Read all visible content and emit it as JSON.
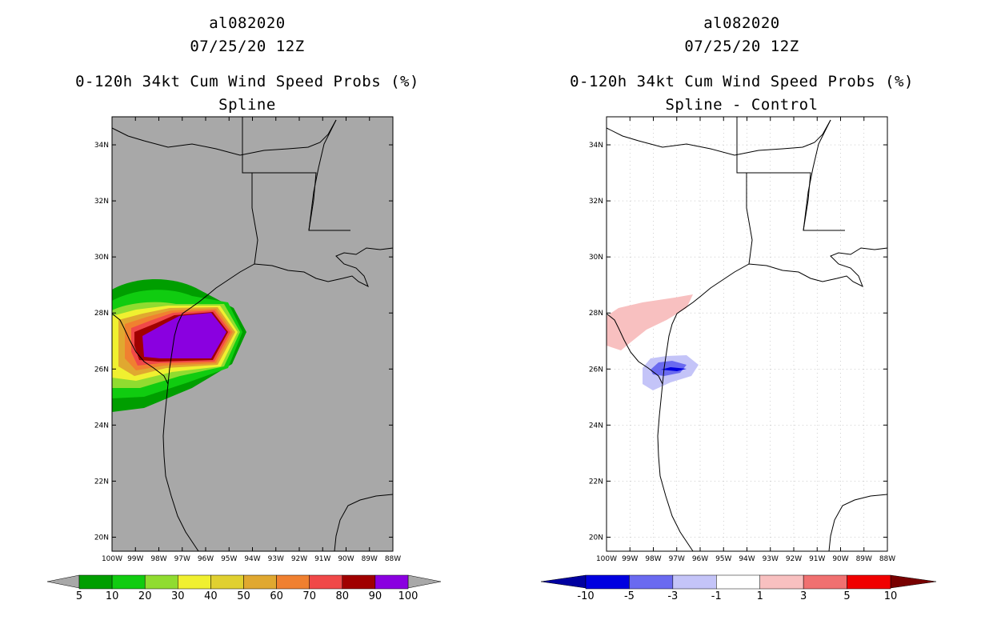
{
  "panels": [
    {
      "id": "left",
      "storm_id": "al082020",
      "datetime": "07/25/20 12Z",
      "product": "0-120h 34kt Cum Wind Speed Probs (%)",
      "subtitle": "Spline",
      "background": "#a8a8a8",
      "colorbar": {
        "labels": [
          "5",
          "10",
          "20",
          "30",
          "40",
          "50",
          "60",
          "70",
          "80",
          "90",
          "100"
        ],
        "colors": [
          "#009e00",
          "#10cc10",
          "#90dc30",
          "#f0f030",
          "#e0d030",
          "#e0a830",
          "#f08030",
          "#f04848",
          "#a00000",
          "#8a00e0"
        ],
        "under_color": "#a8a8a8",
        "over_color": "#a8a8a8"
      }
    },
    {
      "id": "right",
      "storm_id": "al082020",
      "datetime": "07/25/20 12Z",
      "product": "0-120h 34kt Cum Wind Speed Probs (%)",
      "subtitle": "Spline - Control",
      "background": "#ffffff",
      "colorbar": {
        "labels": [
          "-10",
          "-5",
          "-3",
          "-1",
          "1",
          "3",
          "5",
          "10"
        ],
        "colors": [
          "#0000e0",
          "#6a6af0",
          "#c4c4f8",
          "#ffffff",
          "#f8c0c0",
          "#f07070",
          "#f00000"
        ],
        "under_color": "#0000a0",
        "over_color": "#780000"
      }
    }
  ],
  "axes": {
    "lon_labels": [
      "100W",
      "99W",
      "98W",
      "97W",
      "96W",
      "95W",
      "94W",
      "93W",
      "92W",
      "91W",
      "90W",
      "89W",
      "88W"
    ],
    "lat_labels": [
      "34N",
      "32N",
      "30N",
      "28N",
      "26N",
      "24N",
      "22N",
      "20N"
    ],
    "lon_range": [
      -100,
      -88
    ],
    "lat_range": [
      19.5,
      35
    ]
  },
  "icons": [
    "coastline-map",
    "state-borders"
  ]
}
